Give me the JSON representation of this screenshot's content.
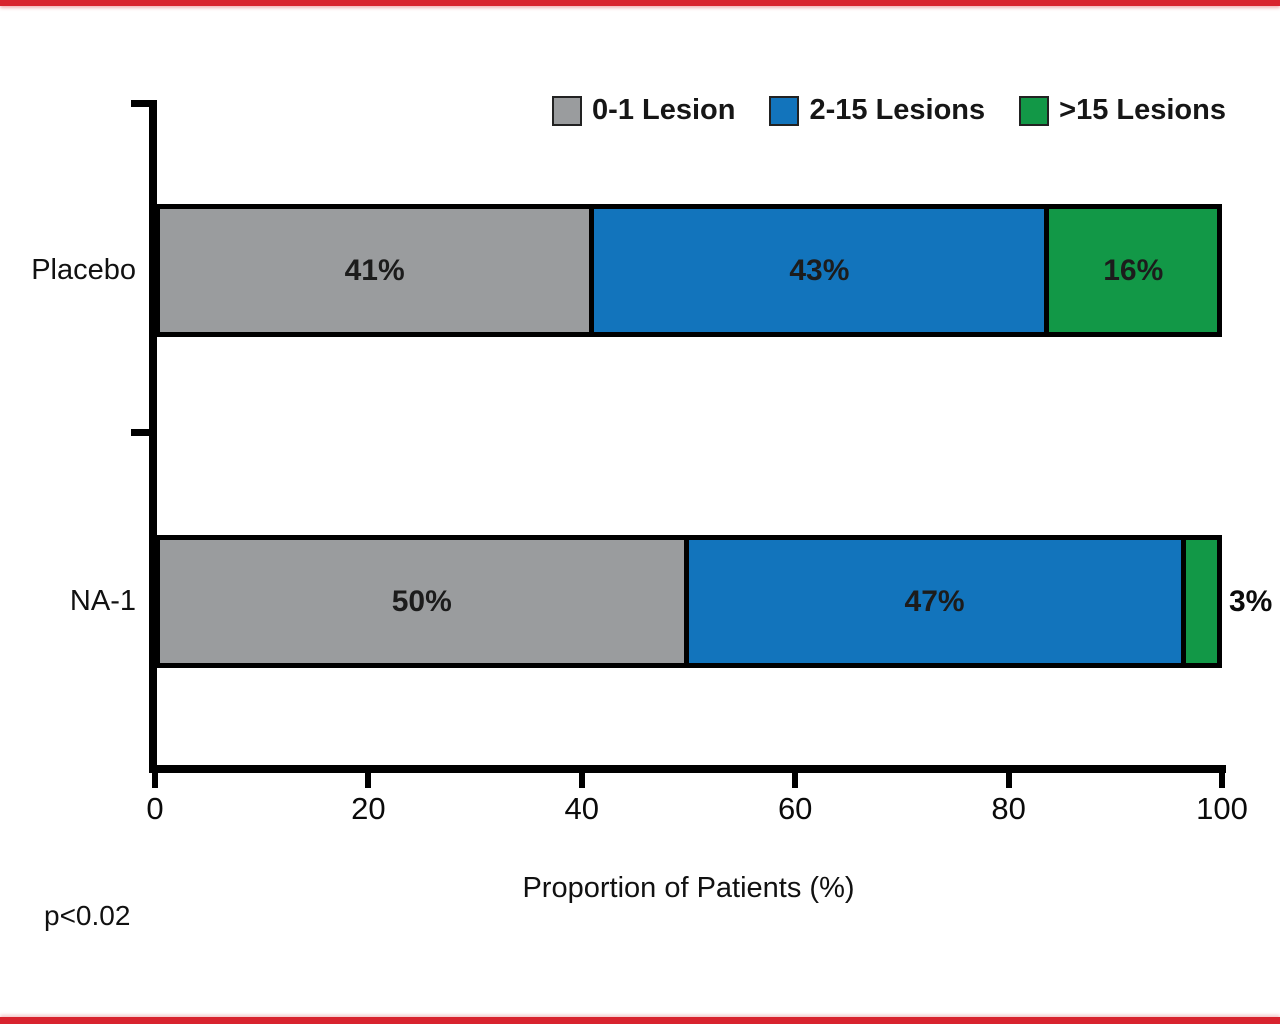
{
  "frame": {
    "accent_color": "#D8232E"
  },
  "chart_data": {
    "type": "bar",
    "orientation": "horizontal",
    "stacked": true,
    "categories": [
      "Placebo",
      "NA-1"
    ],
    "series": [
      {
        "name": "0-1 Lesion",
        "color": "#9A9C9E",
        "values": [
          41,
          50
        ]
      },
      {
        "name": "2-15 Lesions",
        "color": "#1274BC",
        "values": [
          43,
          47
        ]
      },
      {
        "name": ">15 Lesions",
        "color": "#129847",
        "values": [
          16,
          3
        ]
      }
    ],
    "segment_labels": [
      [
        "41%",
        "43%",
        "16%"
      ],
      [
        "50%",
        "47%",
        "3%"
      ]
    ],
    "xlabel": "Proportion of Patients (%)",
    "xlim": [
      0,
      100
    ],
    "xticks": [
      0,
      20,
      40,
      60,
      80,
      100
    ],
    "annotation": "p<0.02",
    "legend_position": "top-right",
    "grid": false,
    "bar_border_color": "#000000",
    "label_color": "#1c1c1c"
  }
}
